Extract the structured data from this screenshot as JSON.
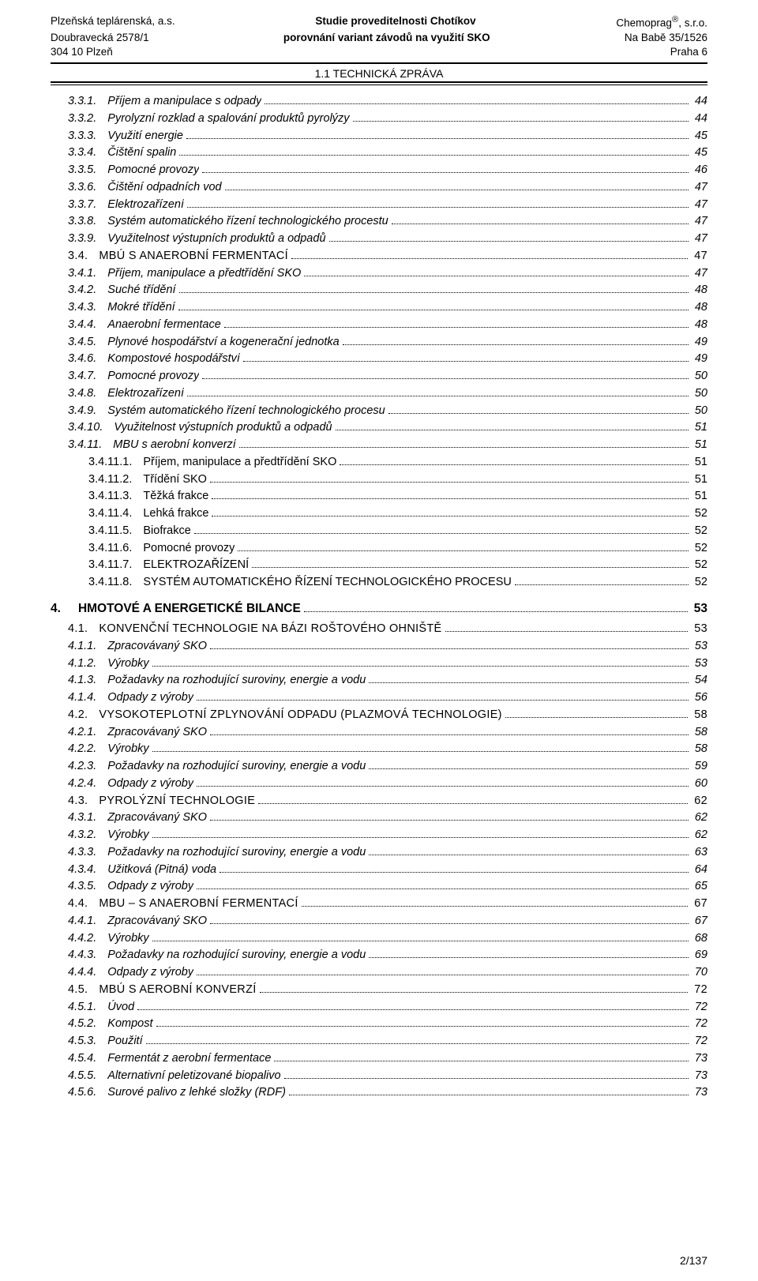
{
  "header": {
    "left": [
      "Plzeňská teplárenská, a.s.",
      "Doubravecká 2578/1",
      "304 10 Plzeň"
    ],
    "center": [
      "Studie proveditelnosti Chotíkov",
      "porovnání variant závodů na využití SKO"
    ],
    "right_line1_name": "Chemoprag",
    "right_line1_sup": "®",
    "right_line1_suffix": ", s.r.o.",
    "right_rest": [
      "Na Babě 35/1526",
      "Praha 6"
    ],
    "subheader": "1.1 TECHNICKÁ ZPRÁVA"
  },
  "toc": [
    {
      "num": "3.3.1.",
      "label": "Příjem a manipulace s odpady",
      "page": "44",
      "cls": "indent-1"
    },
    {
      "num": "3.3.2.",
      "label": "Pyrolyzní rozklad a spalování produktů pyrolýzy",
      "page": "44",
      "cls": "indent-1"
    },
    {
      "num": "3.3.3.",
      "label": "Využití energie",
      "page": "45",
      "cls": "indent-1"
    },
    {
      "num": "3.3.4.",
      "label": "Čištění spalin",
      "page": "45",
      "cls": "indent-1"
    },
    {
      "num": "3.3.5.",
      "label": "Pomocné provozy",
      "page": "46",
      "cls": "indent-1"
    },
    {
      "num": "3.3.6.",
      "label": "Čištění odpadních vod",
      "page": "47",
      "cls": "indent-1"
    },
    {
      "num": "3.3.7.",
      "label": "Elektrozařízení",
      "page": "47",
      "cls": "indent-1"
    },
    {
      "num": "3.3.8.",
      "label": "Systém automatického řízení technologického procestu",
      "page": "47",
      "cls": "indent-1"
    },
    {
      "num": "3.3.9.",
      "label": "Využitelnost výstupních produktů a odpadů",
      "page": "47",
      "cls": "indent-1"
    },
    {
      "num": "3.4.",
      "label": "MBÚ S ANAEROBNÍ FERMENTACÍ",
      "page": "47",
      "cls": "indent-2 smallcaps"
    },
    {
      "num": "3.4.1.",
      "label": "Příjem, manipulace a předtřídění SKO",
      "page": "47",
      "cls": "indent-1"
    },
    {
      "num": "3.4.2.",
      "label": "Suché třídění",
      "page": "48",
      "cls": "indent-1"
    },
    {
      "num": "3.4.3.",
      "label": "Mokré třídění",
      "page": "48",
      "cls": "indent-1"
    },
    {
      "num": "3.4.4.",
      "label": "Anaerobní fermentace",
      "page": "48",
      "cls": "indent-1"
    },
    {
      "num": "3.4.5.",
      "label": "Plynové hospodářství a kogenerační jednotka",
      "page": "49",
      "cls": "indent-1"
    },
    {
      "num": "3.4.6.",
      "label": "Kompostové hospodářství",
      "page": "49",
      "cls": "indent-1"
    },
    {
      "num": "3.4.7.",
      "label": "Pomocné provozy",
      "page": "50",
      "cls": "indent-1"
    },
    {
      "num": "3.4.8.",
      "label": "Elektrozařízení",
      "page": "50",
      "cls": "indent-1"
    },
    {
      "num": "3.4.9.",
      "label": "Systém automatického řízení technologického procesu",
      "page": "50",
      "cls": "indent-1"
    },
    {
      "num": "3.4.10.",
      "label": "Využitelnost výstupních produktů a odpadů",
      "page": "51",
      "cls": "indent-1"
    },
    {
      "num": "3.4.11.",
      "label": "MBU s aerobní konverzí",
      "page": "51",
      "cls": "indent-1"
    },
    {
      "num": "3.4.11.1.",
      "label": "Příjem, manipulace a předtřídění SKO",
      "page": "51",
      "cls": "indent-3"
    },
    {
      "num": "3.4.11.2.",
      "label": "Třídění SKO",
      "page": "51",
      "cls": "indent-3"
    },
    {
      "num": "3.4.11.3.",
      "label": "Těžká frakce",
      "page": "51",
      "cls": "indent-3"
    },
    {
      "num": "3.4.11.4.",
      "label": "Lehká frakce",
      "page": "52",
      "cls": "indent-3"
    },
    {
      "num": "3.4.11.5.",
      "label": "Biofrakce",
      "page": "52",
      "cls": "indent-3"
    },
    {
      "num": "3.4.11.6.",
      "label": "Pomocné provozy",
      "page": "52",
      "cls": "indent-3"
    },
    {
      "num": "3.4.11.7.",
      "label": "ELEKTROZAŘÍZENÍ",
      "page": "52",
      "cls": "indent-3"
    },
    {
      "num": "3.4.11.8.",
      "label": "SYSTÉM AUTOMATICKÉHO ŘÍZENÍ TECHNOLOGICKÉHO PROCESU",
      "page": "52",
      "cls": "indent-3"
    }
  ],
  "section4": {
    "num": "4.",
    "label": "HMOTOVÉ A ENERGETICKÉ BILANCE",
    "page": "53"
  },
  "toc2": [
    {
      "num": "4.1.",
      "label": "KONVENČNÍ TECHNOLOGIE NA BÁZI ROŠTOVÉHO OHNIŠTĚ",
      "page": "53",
      "cls": "indent-2 smallcaps"
    },
    {
      "num": "4.1.1.",
      "label": "Zpracovávaný SKO",
      "page": "53",
      "cls": "indent-1"
    },
    {
      "num": "4.1.2.",
      "label": "Výrobky",
      "page": "53",
      "cls": "indent-1"
    },
    {
      "num": "4.1.3.",
      "label": "Požadavky na rozhodující suroviny, energie a vodu",
      "page": "54",
      "cls": "indent-1"
    },
    {
      "num": "4.1.4.",
      "label": "Odpady z výroby",
      "page": "56",
      "cls": "indent-1"
    },
    {
      "num": "4.2.",
      "label": "VYSOKOTEPLOTNÍ ZPLYNOVÁNÍ ODPADU (PLAZMOVÁ TECHNOLOGIE)",
      "page": "58",
      "cls": "indent-2 smallcaps"
    },
    {
      "num": "4.2.1.",
      "label": "Zpracovávaný SKO",
      "page": "58",
      "cls": "indent-1"
    },
    {
      "num": "4.2.2.",
      "label": "Výrobky",
      "page": "58",
      "cls": "indent-1"
    },
    {
      "num": "4.2.3.",
      "label": "Požadavky na rozhodující suroviny, energie a vodu",
      "page": "59",
      "cls": "indent-1"
    },
    {
      "num": "4.2.4.",
      "label": "Odpady z výroby",
      "page": "60",
      "cls": "indent-1"
    },
    {
      "num": "4.3.",
      "label": "PYROLÝZNÍ TECHNOLOGIE",
      "page": "62",
      "cls": "indent-2 smallcaps"
    },
    {
      "num": "4.3.1.",
      "label": "Zpracovávaný SKO",
      "page": "62",
      "cls": "indent-1"
    },
    {
      "num": "4.3.2.",
      "label": "Výrobky",
      "page": "62",
      "cls": "indent-1"
    },
    {
      "num": "4.3.3.",
      "label": "Požadavky na rozhodující suroviny, energie a vodu",
      "page": "63",
      "cls": "indent-1"
    },
    {
      "num": "4.3.4.",
      "label": "Užitková (Pitná) voda",
      "page": "64",
      "cls": "indent-1"
    },
    {
      "num": "4.3.5.",
      "label": "Odpady z výroby",
      "page": "65",
      "cls": "indent-1"
    },
    {
      "num": "4.4.",
      "label": "MBU – S ANAEROBNÍ FERMENTACÍ",
      "page": "67",
      "cls": "indent-2 smallcaps"
    },
    {
      "num": "4.4.1.",
      "label": "Zpracovávaný SKO",
      "page": "67",
      "cls": "indent-1"
    },
    {
      "num": "4.4.2.",
      "label": "Výrobky",
      "page": "68",
      "cls": "indent-1"
    },
    {
      "num": "4.4.3.",
      "label": "Požadavky na rozhodující suroviny, energie a vodu",
      "page": "69",
      "cls": "indent-1"
    },
    {
      "num": "4.4.4.",
      "label": "Odpady z výroby",
      "page": "70",
      "cls": "indent-1"
    },
    {
      "num": "4.5.",
      "label": "MBÚ S AEROBNÍ KONVERZÍ",
      "page": "72",
      "cls": "indent-2 smallcaps"
    },
    {
      "num": "4.5.1.",
      "label": "Úvod",
      "page": "72",
      "cls": "indent-1"
    },
    {
      "num": "4.5.2.",
      "label": "Kompost",
      "page": "72",
      "cls": "indent-1"
    },
    {
      "num": "4.5.3.",
      "label": "Použití",
      "page": "72",
      "cls": "indent-1"
    },
    {
      "num": "4.5.4.",
      "label": "Fermentát z aerobní fermentace",
      "page": "73",
      "cls": "indent-1"
    },
    {
      "num": "4.5.5.",
      "label": "Alternativní peletizované biopalivo",
      "page": "73",
      "cls": "indent-1"
    },
    {
      "num": "4.5.6.",
      "label": "Surové palivo z lehké složky (RDF)",
      "page": "73",
      "cls": "indent-1"
    }
  ],
  "footer": "2/137"
}
